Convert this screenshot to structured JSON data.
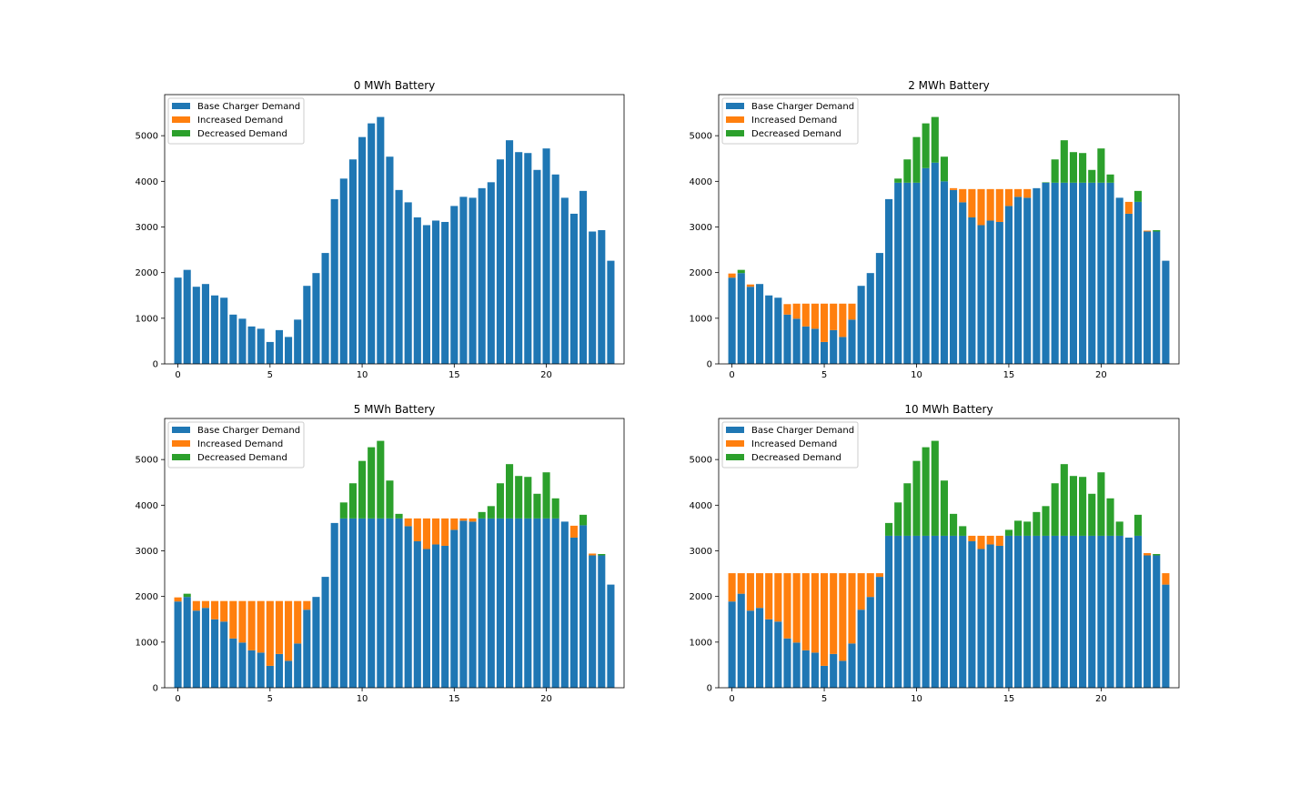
{
  "colors": {
    "base": "#1f77b4",
    "increased": "#ff7f0e",
    "decreased": "#2ca02c"
  },
  "chart_data": [
    {
      "type": "bar",
      "title": "0 MWh Battery",
      "xlabel": "",
      "ylabel": "",
      "xlim": [
        -0.72,
        24.22
      ],
      "ylim": [
        0,
        5900
      ],
      "xticks": [
        0,
        5,
        10,
        15,
        20
      ],
      "yticks": [
        0,
        1000,
        2000,
        3000,
        4000,
        5000
      ],
      "legend": {
        "placement": "top-left",
        "entries": [
          "Base Charger Demand",
          "Increased Demand",
          "Decreased Demand"
        ]
      },
      "x": [
        0,
        0.5,
        1,
        1.5,
        2,
        2.5,
        3,
        3.5,
        4,
        4.5,
        5,
        5.5,
        6,
        6.5,
        7,
        7.5,
        8,
        8.5,
        9,
        9.5,
        10,
        10.5,
        11,
        11.5,
        12,
        12.5,
        13,
        13.5,
        14,
        14.5,
        15,
        15.5,
        16,
        16.5,
        17,
        17.5,
        18,
        18.5,
        19,
        19.5,
        20,
        20.5,
        21,
        21.5,
        22,
        22.5,
        23,
        23.5
      ],
      "series": [
        {
          "name": "Base Charger Demand",
          "values": [
            1890,
            2060,
            1690,
            1750,
            1500,
            1450,
            1080,
            990,
            820,
            770,
            480,
            740,
            590,
            970,
            1710,
            1990,
            2430,
            3610,
            4060,
            4480,
            4970,
            5270,
            5410,
            4540,
            3810,
            3540,
            3210,
            3040,
            3140,
            3110,
            3460,
            3660,
            3640,
            3850,
            3980,
            4480,
            4900,
            4640,
            4620,
            4250,
            4720,
            4150,
            3640,
            3290,
            3790,
            2900,
            2930,
            2260
          ]
        },
        {
          "name": "Increased Demand",
          "values": [
            0,
            0,
            0,
            0,
            0,
            0,
            0,
            0,
            0,
            0,
            0,
            0,
            0,
            0,
            0,
            0,
            0,
            0,
            0,
            0,
            0,
            0,
            0,
            0,
            0,
            0,
            0,
            0,
            0,
            0,
            0,
            0,
            0,
            0,
            0,
            0,
            0,
            0,
            0,
            0,
            0,
            0,
            0,
            0,
            0,
            0,
            0,
            0
          ]
        },
        {
          "name": "Decreased Demand",
          "values": [
            0,
            0,
            0,
            0,
            0,
            0,
            0,
            0,
            0,
            0,
            0,
            0,
            0,
            0,
            0,
            0,
            0,
            0,
            0,
            0,
            0,
            0,
            0,
            0,
            0,
            0,
            0,
            0,
            0,
            0,
            0,
            0,
            0,
            0,
            0,
            0,
            0,
            0,
            0,
            0,
            0,
            0,
            0,
            0,
            0,
            0,
            0,
            0
          ]
        }
      ]
    },
    {
      "type": "bar",
      "title": "2 MWh Battery",
      "xlabel": "",
      "ylabel": "",
      "xlim": [
        -0.72,
        24.22
      ],
      "ylim": [
        0,
        5900
      ],
      "xticks": [
        0,
        5,
        10,
        15,
        20
      ],
      "yticks": [
        0,
        1000,
        2000,
        3000,
        4000,
        5000
      ],
      "legend": {
        "placement": "top-left",
        "entries": [
          "Base Charger Demand",
          "Increased Demand",
          "Decreased Demand"
        ]
      },
      "x": [
        0,
        0.5,
        1,
        1.5,
        2,
        2.5,
        3,
        3.5,
        4,
        4.5,
        5,
        5.5,
        6,
        6.5,
        7,
        7.5,
        8,
        8.5,
        9,
        9.5,
        10,
        10.5,
        11,
        11.5,
        12,
        12.5,
        13,
        13.5,
        14,
        14.5,
        15,
        15.5,
        16,
        16.5,
        17,
        17.5,
        18,
        18.5,
        19,
        19.5,
        20,
        20.5,
        21,
        21.5,
        22,
        22.5,
        23,
        23.5
      ],
      "series": [
        {
          "name": "Base Charger Demand",
          "values": [
            1890,
            1990,
            1690,
            1750,
            1500,
            1450,
            1080,
            990,
            820,
            770,
            480,
            740,
            590,
            970,
            1710,
            1990,
            2430,
            3610,
            3970,
            3970,
            3970,
            4290,
            4410,
            4000,
            3810,
            3540,
            3210,
            3040,
            3140,
            3110,
            3460,
            3660,
            3640,
            3850,
            3970,
            3970,
            3970,
            3970,
            3970,
            3970,
            3970,
            3970,
            3640,
            3290,
            3550,
            2900,
            2900,
            2260
          ]
        },
        {
          "name": "Increased Demand",
          "values": [
            90,
            0,
            50,
            0,
            0,
            0,
            230,
            330,
            500,
            550,
            840,
            580,
            730,
            350,
            0,
            0,
            0,
            0,
            0,
            0,
            0,
            0,
            0,
            0,
            40,
            290,
            620,
            790,
            690,
            720,
            370,
            170,
            190,
            0,
            0,
            0,
            0,
            0,
            0,
            0,
            0,
            0,
            0,
            260,
            0,
            20,
            0,
            0
          ]
        },
        {
          "name": "Decreased Demand",
          "values": [
            0,
            70,
            0,
            0,
            0,
            0,
            0,
            0,
            0,
            0,
            0,
            0,
            0,
            0,
            0,
            0,
            0,
            0,
            90,
            510,
            1000,
            980,
            1000,
            540,
            0,
            0,
            0,
            0,
            0,
            0,
            0,
            0,
            0,
            0,
            10,
            510,
            930,
            670,
            650,
            280,
            750,
            180,
            0,
            0,
            240,
            0,
            30,
            0
          ]
        }
      ]
    },
    {
      "type": "bar",
      "title": "5 MWh Battery",
      "xlabel": "",
      "ylabel": "",
      "xlim": [
        -0.72,
        24.22
      ],
      "ylim": [
        0,
        5900
      ],
      "xticks": [
        0,
        5,
        10,
        15,
        20
      ],
      "yticks": [
        0,
        1000,
        2000,
        3000,
        4000,
        5000
      ],
      "legend": {
        "placement": "top-left",
        "entries": [
          "Base Charger Demand",
          "Increased Demand",
          "Decreased Demand"
        ]
      },
      "x": [
        0,
        0.5,
        1,
        1.5,
        2,
        2.5,
        3,
        3.5,
        4,
        4.5,
        5,
        5.5,
        6,
        6.5,
        7,
        7.5,
        8,
        8.5,
        9,
        9.5,
        10,
        10.5,
        11,
        11.5,
        12,
        12.5,
        13,
        13.5,
        14,
        14.5,
        15,
        15.5,
        16,
        16.5,
        17,
        17.5,
        18,
        18.5,
        19,
        19.5,
        20,
        20.5,
        21,
        21.5,
        22,
        22.5,
        23,
        23.5
      ],
      "series": [
        {
          "name": "Base Charger Demand",
          "values": [
            1890,
            1990,
            1690,
            1750,
            1500,
            1450,
            1080,
            990,
            820,
            770,
            480,
            740,
            590,
            970,
            1710,
            1990,
            2430,
            3610,
            3710,
            3710,
            3710,
            3710,
            3710,
            3710,
            3710,
            3540,
            3210,
            3040,
            3140,
            3110,
            3460,
            3660,
            3640,
            3710,
            3710,
            3710,
            3710,
            3710,
            3710,
            3710,
            3710,
            3710,
            3640,
            3290,
            3560,
            2900,
            2900,
            2260
          ]
        },
        {
          "name": "Increased Demand",
          "values": [
            90,
            0,
            210,
            150,
            400,
            450,
            820,
            910,
            1080,
            1130,
            1420,
            1160,
            1310,
            930,
            190,
            0,
            0,
            0,
            0,
            0,
            0,
            0,
            0,
            0,
            0,
            170,
            500,
            670,
            570,
            600,
            250,
            50,
            70,
            0,
            0,
            0,
            0,
            0,
            0,
            0,
            0,
            0,
            0,
            260,
            0,
            40,
            0,
            0
          ]
        },
        {
          "name": "Decreased Demand",
          "values": [
            0,
            70,
            0,
            0,
            0,
            0,
            0,
            0,
            0,
            0,
            0,
            0,
            0,
            0,
            0,
            0,
            0,
            0,
            350,
            770,
            1260,
            1560,
            1700,
            830,
            100,
            0,
            0,
            0,
            0,
            0,
            0,
            0,
            0,
            140,
            270,
            770,
            1190,
            930,
            910,
            540,
            1010,
            440,
            0,
            0,
            230,
            0,
            30,
            0
          ]
        }
      ]
    },
    {
      "type": "bar",
      "title": "10 MWh Battery",
      "xlabel": "",
      "ylabel": "",
      "xlim": [
        -0.72,
        24.22
      ],
      "ylim": [
        0,
        5900
      ],
      "xticks": [
        0,
        5,
        10,
        15,
        20
      ],
      "yticks": [
        0,
        1000,
        2000,
        3000,
        4000,
        5000
      ],
      "legend": {
        "placement": "top-left",
        "entries": [
          "Base Charger Demand",
          "Increased Demand",
          "Decreased Demand"
        ]
      },
      "x": [
        0,
        0.5,
        1,
        1.5,
        2,
        2.5,
        3,
        3.5,
        4,
        4.5,
        5,
        5.5,
        6,
        6.5,
        7,
        7.5,
        8,
        8.5,
        9,
        9.5,
        10,
        10.5,
        11,
        11.5,
        12,
        12.5,
        13,
        13.5,
        14,
        14.5,
        15,
        15.5,
        16,
        16.5,
        17,
        17.5,
        18,
        18.5,
        19,
        19.5,
        20,
        20.5,
        21,
        21.5,
        22,
        22.5,
        23,
        23.5
      ],
      "series": [
        {
          "name": "Base Charger Demand",
          "values": [
            1890,
            2060,
            1690,
            1750,
            1500,
            1450,
            1080,
            990,
            820,
            770,
            480,
            740,
            590,
            970,
            1710,
            1990,
            2430,
            3330,
            3330,
            3330,
            3330,
            3330,
            3330,
            3330,
            3330,
            3330,
            3210,
            3040,
            3140,
            3110,
            3330,
            3330,
            3330,
            3330,
            3330,
            3330,
            3330,
            3330,
            3330,
            3330,
            3330,
            3330,
            3330,
            3290,
            3330,
            2900,
            2900,
            2260
          ]
        },
        {
          "name": "Increased Demand",
          "values": [
            620,
            450,
            820,
            760,
            1010,
            1060,
            1430,
            1520,
            1690,
            1740,
            2030,
            1770,
            1920,
            1540,
            800,
            520,
            80,
            0,
            0,
            0,
            0,
            0,
            0,
            0,
            0,
            0,
            120,
            290,
            190,
            220,
            0,
            0,
            0,
            0,
            0,
            0,
            0,
            0,
            0,
            0,
            0,
            0,
            0,
            0,
            0,
            50,
            0,
            250
          ]
        },
        {
          "name": "Decreased Demand",
          "values": [
            0,
            0,
            0,
            0,
            0,
            0,
            0,
            0,
            0,
            0,
            0,
            0,
            0,
            0,
            0,
            0,
            0,
            280,
            730,
            1150,
            1640,
            1940,
            2080,
            1210,
            480,
            210,
            0,
            0,
            0,
            0,
            130,
            330,
            310,
            520,
            650,
            1150,
            1570,
            1310,
            1290,
            920,
            1390,
            820,
            310,
            0,
            460,
            0,
            30,
            0
          ]
        }
      ]
    }
  ]
}
